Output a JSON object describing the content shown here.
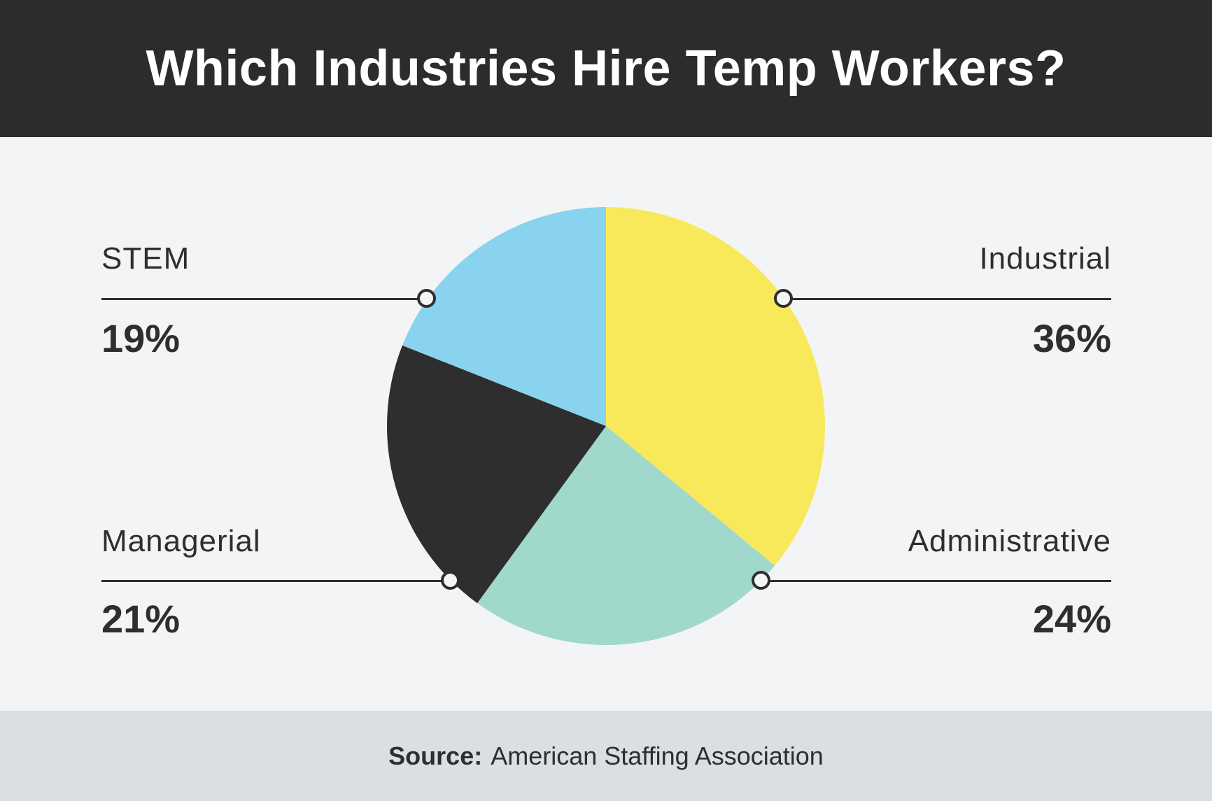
{
  "header": {
    "title": "Which Industries Hire Temp Workers?"
  },
  "chart_data": {
    "type": "pie",
    "title": "Which Industries Hire Temp Workers?",
    "start_angle_deg": 0,
    "direction": "clockwise",
    "legend_position": "callouts",
    "slices": [
      {
        "label": "Industrial",
        "value": 36,
        "pct_text": "36%",
        "color": "#f8e95b",
        "callout_side": "top-right"
      },
      {
        "label": "Administrative",
        "value": 24,
        "pct_text": "24%",
        "color": "#a0d8cc",
        "callout_side": "bottom-right"
      },
      {
        "label": "Managerial",
        "value": 21,
        "pct_text": "21%",
        "color": "#2e2e2e",
        "callout_side": "bottom-left"
      },
      {
        "label": "STEM",
        "value": 19,
        "pct_text": "19%",
        "color": "#89d3ee",
        "callout_side": "top-left"
      }
    ]
  },
  "footer": {
    "source_label": "Source:",
    "source_text": "American Staffing Association"
  },
  "colors": {
    "header_bg": "#2b2c2e",
    "page_bg": "#f3f4f6",
    "footer_bg": "#dbdfe2",
    "text_color": "#2e2e2e",
    "line_color": "#2e2e2e",
    "title_color": "#ffffff"
  }
}
